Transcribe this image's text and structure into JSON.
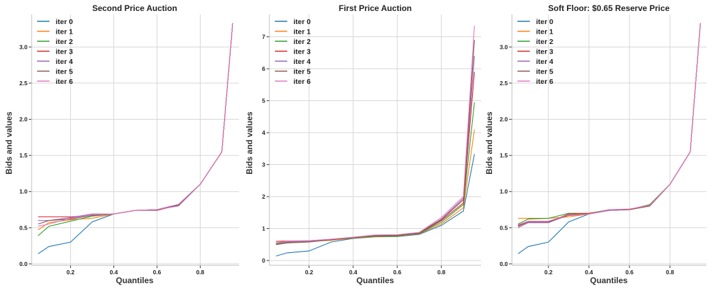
{
  "figure": {
    "legend_position": "top-left",
    "grid": true,
    "series_colors": [
      "#1f77b4",
      "#ff7f0e",
      "#2ca02c",
      "#d62728",
      "#9467bd",
      "#8c564b",
      "#e377c2"
    ]
  },
  "chart_data": [
    {
      "type": "line",
      "title": "Second Price Auction",
      "xlabel": "Quantiles",
      "ylabel": "Bids and values",
      "xlim": [
        0.02,
        0.98
      ],
      "ylim": [
        -0.02,
        3.45
      ],
      "xticks": [
        "0.2",
        "0.4",
        "0.6",
        "0.8"
      ],
      "yticks": [
        "0.0",
        "0.5",
        "1.0",
        "1.5",
        "2.0",
        "2.5",
        "3.0"
      ],
      "x": [
        0.05,
        0.1,
        0.2,
        0.3,
        0.4,
        0.5,
        0.6,
        0.7,
        0.8,
        0.9,
        0.95
      ],
      "series": [
        {
          "name": "iter 0",
          "values": [
            0.14,
            0.24,
            0.3,
            0.58,
            0.69,
            0.74,
            0.75,
            0.82,
            1.1,
            1.55,
            3.33
          ]
        },
        {
          "name": "iter 1",
          "values": [
            0.47,
            0.57,
            0.61,
            0.63,
            0.69,
            0.74,
            0.75,
            0.82,
            1.1,
            1.55,
            3.33
          ]
        },
        {
          "name": "iter 2",
          "values": [
            0.39,
            0.52,
            0.59,
            0.66,
            0.69,
            0.74,
            0.75,
            0.82,
            1.1,
            1.55,
            3.33
          ]
        },
        {
          "name": "iter 3",
          "values": [
            0.65,
            0.65,
            0.65,
            0.67,
            0.69,
            0.74,
            0.75,
            0.82,
            1.1,
            1.55,
            3.33
          ]
        },
        {
          "name": "iter 4",
          "values": [
            0.6,
            0.6,
            0.64,
            0.69,
            0.69,
            0.74,
            0.75,
            0.82,
            1.1,
            1.55,
            3.33
          ]
        },
        {
          "name": "iter 5",
          "values": [
            0.55,
            0.6,
            0.62,
            0.67,
            0.69,
            0.74,
            0.74,
            0.81,
            1.1,
            1.55,
            3.33
          ]
        },
        {
          "name": "iter 6",
          "values": [
            0.52,
            0.55,
            0.63,
            0.68,
            0.69,
            0.74,
            0.75,
            0.8,
            1.1,
            1.55,
            3.33
          ]
        }
      ]
    },
    {
      "type": "line",
      "title": "First Price Auction",
      "xlabel": "Quantiles",
      "ylabel": "Bids and values",
      "xlim": [
        0.02,
        0.98
      ],
      "ylim": [
        -0.15,
        7.7
      ],
      "xticks": [
        "0.2",
        "0.4",
        "0.6",
        "0.8"
      ],
      "yticks": [
        "0",
        "1",
        "2",
        "3",
        "4",
        "5",
        "6",
        "7"
      ],
      "x": [
        0.05,
        0.1,
        0.2,
        0.3,
        0.4,
        0.5,
        0.6,
        0.7,
        0.8,
        0.9,
        0.95
      ],
      "series": [
        {
          "name": "iter 0",
          "values": [
            0.14,
            0.24,
            0.3,
            0.58,
            0.69,
            0.74,
            0.75,
            0.82,
            1.1,
            1.55,
            3.33
          ]
        },
        {
          "name": "iter 1",
          "values": [
            0.5,
            0.55,
            0.6,
            0.63,
            0.7,
            0.75,
            0.76,
            0.84,
            1.15,
            1.65,
            4.1
          ]
        },
        {
          "name": "iter 2",
          "values": [
            0.52,
            0.56,
            0.59,
            0.65,
            0.71,
            0.76,
            0.77,
            0.85,
            1.2,
            1.75,
            4.95
          ]
        },
        {
          "name": "iter 3",
          "values": [
            0.6,
            0.61,
            0.62,
            0.66,
            0.72,
            0.78,
            0.79,
            0.86,
            1.25,
            1.8,
            5.9
          ]
        },
        {
          "name": "iter 4",
          "values": [
            0.55,
            0.58,
            0.61,
            0.66,
            0.73,
            0.79,
            0.8,
            0.87,
            1.3,
            1.95,
            6.4
          ]
        },
        {
          "name": "iter 5",
          "values": [
            0.5,
            0.55,
            0.58,
            0.65,
            0.72,
            0.78,
            0.79,
            0.86,
            1.28,
            1.9,
            6.9
          ]
        },
        {
          "name": "iter 6",
          "values": [
            0.56,
            0.6,
            0.62,
            0.67,
            0.73,
            0.8,
            0.81,
            0.88,
            1.35,
            2.0,
            7.35
          ]
        }
      ]
    },
    {
      "type": "line",
      "title": "Soft Floor: $0.65 Reserve Price",
      "xlabel": "Quantiles",
      "ylabel": "Bids and values",
      "xlim": [
        0.02,
        0.98
      ],
      "ylim": [
        -0.02,
        3.45
      ],
      "xticks": [
        "0.2",
        "0.4",
        "0.6",
        "0.8"
      ],
      "yticks": [
        "0.0",
        "0.5",
        "1.0",
        "1.5",
        "2.0",
        "2.5",
        "3.0"
      ],
      "x": [
        0.05,
        0.1,
        0.2,
        0.3,
        0.4,
        0.5,
        0.6,
        0.7,
        0.8,
        0.9,
        0.95
      ],
      "series": [
        {
          "name": "iter 0",
          "values": [
            0.14,
            0.24,
            0.3,
            0.58,
            0.69,
            0.74,
            0.75,
            0.82,
            1.1,
            1.55,
            3.33
          ]
        },
        {
          "name": "iter 1",
          "values": [
            0.63,
            0.63,
            0.63,
            0.65,
            0.69,
            0.74,
            0.75,
            0.82,
            1.1,
            1.55,
            3.33
          ]
        },
        {
          "name": "iter 2",
          "values": [
            0.55,
            0.62,
            0.63,
            0.7,
            0.7,
            0.75,
            0.75,
            0.82,
            1.1,
            1.55,
            3.33
          ]
        },
        {
          "name": "iter 3",
          "values": [
            0.52,
            0.58,
            0.58,
            0.69,
            0.7,
            0.74,
            0.75,
            0.8,
            1.1,
            1.55,
            3.33
          ]
        },
        {
          "name": "iter 4",
          "values": [
            0.5,
            0.57,
            0.57,
            0.68,
            0.69,
            0.74,
            0.75,
            0.81,
            1.1,
            1.55,
            3.33
          ]
        },
        {
          "name": "iter 5",
          "values": [
            0.53,
            0.58,
            0.58,
            0.67,
            0.69,
            0.75,
            0.75,
            0.8,
            1.1,
            1.55,
            3.33
          ]
        },
        {
          "name": "iter 6",
          "values": [
            0.54,
            0.59,
            0.59,
            0.68,
            0.69,
            0.75,
            0.76,
            0.81,
            1.1,
            1.55,
            3.33
          ]
        }
      ]
    }
  ]
}
